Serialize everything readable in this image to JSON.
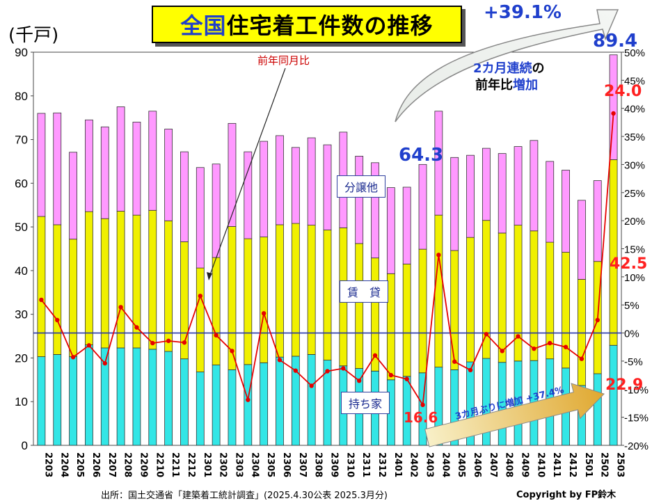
{
  "title": {
    "part1": "全国",
    "part2": "住宅着工件数の推移"
  },
  "y_unit": "(千戸)",
  "labels": {
    "bunjo": "分譲他",
    "chintai": "賃　貸",
    "mochiie": "持ち家",
    "yoy": "前年同月比"
  },
  "annotations": {
    "increase_pct": "+39.1%",
    "note_line1a": "2カ月連続",
    "note_line1b": "の",
    "note_line2a": "前年比",
    "note_line2b": "増加",
    "arrow_text": "3カ月ぶりに増加 +37.4%",
    "total_last": "89.4",
    "total_2403": "64.3",
    "yoy_last": "24.0",
    "chintai_last": "42.5",
    "mochiie_last": "22.9",
    "mochiie_2403": "16.6"
  },
  "footer": {
    "source": "出所：国土交通省「建築着工統計調査」(2025.4.30公表 2025.3月分)",
    "copyright": "Copyright by FP鈴木"
  },
  "colors": {
    "mochiie": "#33e6e6",
    "chintai": "#f0f000",
    "bunjo": "#ff99ff",
    "yoy_line": "#e60000",
    "zero_line": "#2233aa"
  },
  "chart_data": {
    "type": "bar",
    "stacked": true,
    "categories": [
      "2203",
      "2204",
      "2205",
      "2206",
      "2207",
      "2208",
      "2209",
      "2210",
      "2211",
      "2212",
      "2301",
      "2302",
      "2303",
      "2304",
      "2305",
      "2306",
      "2307",
      "2308",
      "2309",
      "2310",
      "2311",
      "2312",
      "2401",
      "2402",
      "2403",
      "2404",
      "2405",
      "2406",
      "2407",
      "2408",
      "2409",
      "2410",
      "2411",
      "2412",
      "2501",
      "2502",
      "2503"
    ],
    "series": [
      {
        "name": "持ち家",
        "values": [
          20.3,
          20.8,
          20.3,
          23.0,
          22.3,
          22.3,
          22.3,
          22.0,
          21.5,
          19.8,
          16.8,
          18.4,
          17.3,
          18.5,
          18.9,
          20.2,
          20.4,
          20.8,
          19.5,
          18.2,
          17.6,
          17.0,
          15.0,
          15.8,
          16.6,
          17.9,
          17.3,
          19.1,
          19.9,
          19.0,
          19.3,
          19.4,
          19.8,
          17.7,
          13.7,
          16.4,
          22.9
        ]
      },
      {
        "name": "賃　貸",
        "values": [
          32.1,
          29.7,
          26.9,
          30.5,
          29.6,
          31.3,
          30.4,
          31.8,
          29.9,
          26.8,
          23.8,
          24.6,
          32.8,
          28.8,
          28.8,
          30.3,
          30.4,
          29.6,
          29.8,
          31.6,
          28.6,
          25.9,
          24.3,
          25.7,
          28.3,
          34.8,
          27.3,
          28.5,
          31.6,
          29.6,
          31.1,
          29.7,
          26.7,
          26.5,
          24.3,
          25.7,
          42.5
        ]
      },
      {
        "name": "分譲他",
        "values": [
          23.6,
          25.6,
          19.9,
          21.0,
          21.0,
          23.9,
          21.3,
          22.7,
          21.0,
          20.6,
          23.0,
          21.4,
          23.6,
          19.9,
          21.9,
          20.4,
          17.4,
          20.0,
          19.5,
          21.9,
          20.0,
          21.8,
          19.7,
          17.6,
          19.4,
          23.8,
          21.3,
          18.8,
          16.5,
          18.2,
          18.0,
          20.7,
          18.5,
          18.8,
          18.1,
          18.5,
          24.0
        ]
      },
      {
        "name": "前年同月比",
        "axis": "right",
        "unit": "%",
        "values": [
          5.9,
          2.3,
          -4.3,
          -2.2,
          -5.4,
          4.6,
          1.0,
          -1.8,
          -1.4,
          -1.7,
          6.6,
          -0.4,
          -3.2,
          -11.9,
          3.5,
          -4.8,
          -6.7,
          -9.4,
          -6.8,
          -6.3,
          -8.5,
          -4.0,
          -7.5,
          -8.2,
          -12.8,
          13.9,
          -5.1,
          -6.6,
          -0.2,
          -3.2,
          -0.6,
          -2.8,
          -1.8,
          -2.5,
          -4.6,
          2.3,
          39.1
        ]
      }
    ],
    "y_left": {
      "min": 0,
      "max": 90,
      "ticks": [
        "0",
        "10",
        "20",
        "30",
        "40",
        "50",
        "60",
        "70",
        "80",
        "90"
      ]
    },
    "y_right": {
      "min": -20,
      "max": 50,
      "ticks": [
        "-20%",
        "-15%",
        "-10%",
        "-5%",
        "0%",
        "5%",
        "10%",
        "15%",
        "20%",
        "25%",
        "30%",
        "35%",
        "40%",
        "45%",
        "50%"
      ]
    }
  }
}
